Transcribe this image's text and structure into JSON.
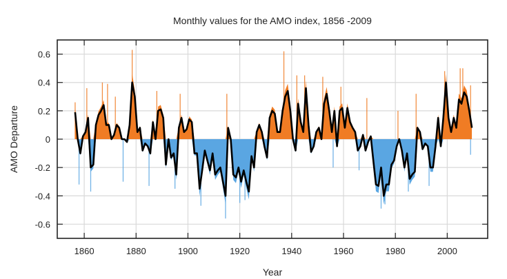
{
  "chart_data": {
    "type": "area",
    "title": "Monthly values for the AMO index, 1856 -2009",
    "xlabel": "Year",
    "ylabel": "AMO Departure",
    "xlim": [
      1849.6,
      2015.6
    ],
    "ylim": [
      -0.7,
      0.7
    ],
    "xticks": [
      1860,
      1880,
      1900,
      1920,
      1940,
      1960,
      1980,
      2000
    ],
    "yticks": [
      -0.6,
      -0.4,
      -0.2,
      0,
      0.2,
      0.4,
      0.6
    ],
    "ytick_labels": [
      "-0.6",
      "-0.4",
      "-0.2",
      "0",
      "0.2",
      "0.4",
      "0.6"
    ],
    "grid": true,
    "legend": "none",
    "colors": {
      "positive": "#f07c24",
      "negative": "#5aa6e2",
      "smoothed": "#000000",
      "grid": "#d9d9d9"
    },
    "smoothed_start_year": 1856,
    "smoothed": [
      0.19,
      0.0,
      -0.1,
      0.02,
      0.05,
      0.15,
      -0.2,
      -0.18,
      0.1,
      0.17,
      0.2,
      0.24,
      0.1,
      0.1,
      0.0,
      0.03,
      0.1,
      0.08,
      0.0,
      0.0,
      -0.02,
      0.1,
      0.4,
      0.3,
      0.05,
      0.08,
      -0.08,
      -0.03,
      -0.05,
      -0.1,
      0.12,
      0.0,
      0.2,
      0.21,
      0.15,
      -0.18,
      0.0,
      -0.13,
      -0.1,
      -0.25,
      0.08,
      0.15,
      0.05,
      0.07,
      0.14,
      0.12,
      -0.1,
      -0.1,
      -0.35,
      -0.22,
      -0.08,
      -0.15,
      -0.22,
      -0.1,
      -0.25,
      -0.22,
      -0.2,
      -0.3,
      -0.4,
      0.08,
      0.0,
      -0.25,
      -0.27,
      -0.2,
      -0.3,
      -0.22,
      -0.3,
      -0.37,
      -0.12,
      -0.2,
      0.05,
      0.1,
      0.05,
      -0.05,
      -0.13,
      0.15,
      0.2,
      0.18,
      0.05,
      0.05,
      0.2,
      0.3,
      0.34,
      0.2,
      0.0,
      -0.08,
      0.25,
      0.12,
      0.05,
      0.36,
      0.1,
      -0.09,
      -0.05,
      0.05,
      0.08,
      0.0,
      0.25,
      0.32,
      0.2,
      0.05,
      0.2,
      -0.05,
      0.2,
      0.22,
      0.08,
      0.22,
      0.12,
      0.08,
      0.05,
      -0.08,
      -0.05,
      0.03,
      -0.08,
      -0.02,
      0.02,
      -0.15,
      -0.32,
      -0.33,
      -0.2,
      -0.4,
      -0.32,
      -0.32,
      -0.18,
      -0.15,
      -0.05,
      0.0,
      -0.08,
      -0.2,
      -0.1,
      -0.28,
      -0.25,
      -0.23,
      0.08,
      0.05,
      -0.07,
      -0.03,
      -0.05,
      -0.2,
      -0.2,
      -0.05,
      0.15,
      -0.05,
      0.15,
      0.4,
      0.15,
      0.05,
      0.15,
      0.08,
      0.28,
      0.25,
      0.33,
      0.3,
      0.2,
      0.08
    ],
    "monthly_extremes": [
      [
        1856.5,
        0.26
      ],
      [
        1858,
        -0.32
      ],
      [
        1861,
        0.36
      ],
      [
        1862.5,
        -0.37
      ],
      [
        1867,
        0.4
      ],
      [
        1869,
        0.39
      ],
      [
        1872,
        0.3
      ],
      [
        1875,
        -0.3
      ],
      [
        1878.5,
        0.63
      ],
      [
        1885,
        -0.33
      ],
      [
        1888,
        0.34
      ],
      [
        1895,
        -0.35
      ],
      [
        1897,
        0.32
      ],
      [
        1905,
        -0.47
      ],
      [
        1914.5,
        -0.56
      ],
      [
        1915,
        0.32
      ],
      [
        1920,
        -0.45
      ],
      [
        1922,
        -0.43
      ],
      [
        1937,
        0.62
      ],
      [
        1942,
        0.45
      ],
      [
        1945,
        0.45
      ],
      [
        1952,
        0.44
      ],
      [
        1956,
        -0.2
      ],
      [
        1959,
        0.37
      ],
      [
        1966,
        -0.22
      ],
      [
        1969,
        0.29
      ],
      [
        1974.5,
        -0.49
      ],
      [
        1976,
        -0.46
      ],
      [
        1981,
        0.2
      ],
      [
        1985,
        -0.37
      ],
      [
        1988,
        0.32
      ],
      [
        1993,
        -0.33
      ],
      [
        1999,
        0.48
      ],
      [
        2005,
        0.5
      ],
      [
        2006,
        0.5
      ],
      [
        2009,
        0.38
      ],
      [
        2009,
        -0.11
      ]
    ]
  }
}
